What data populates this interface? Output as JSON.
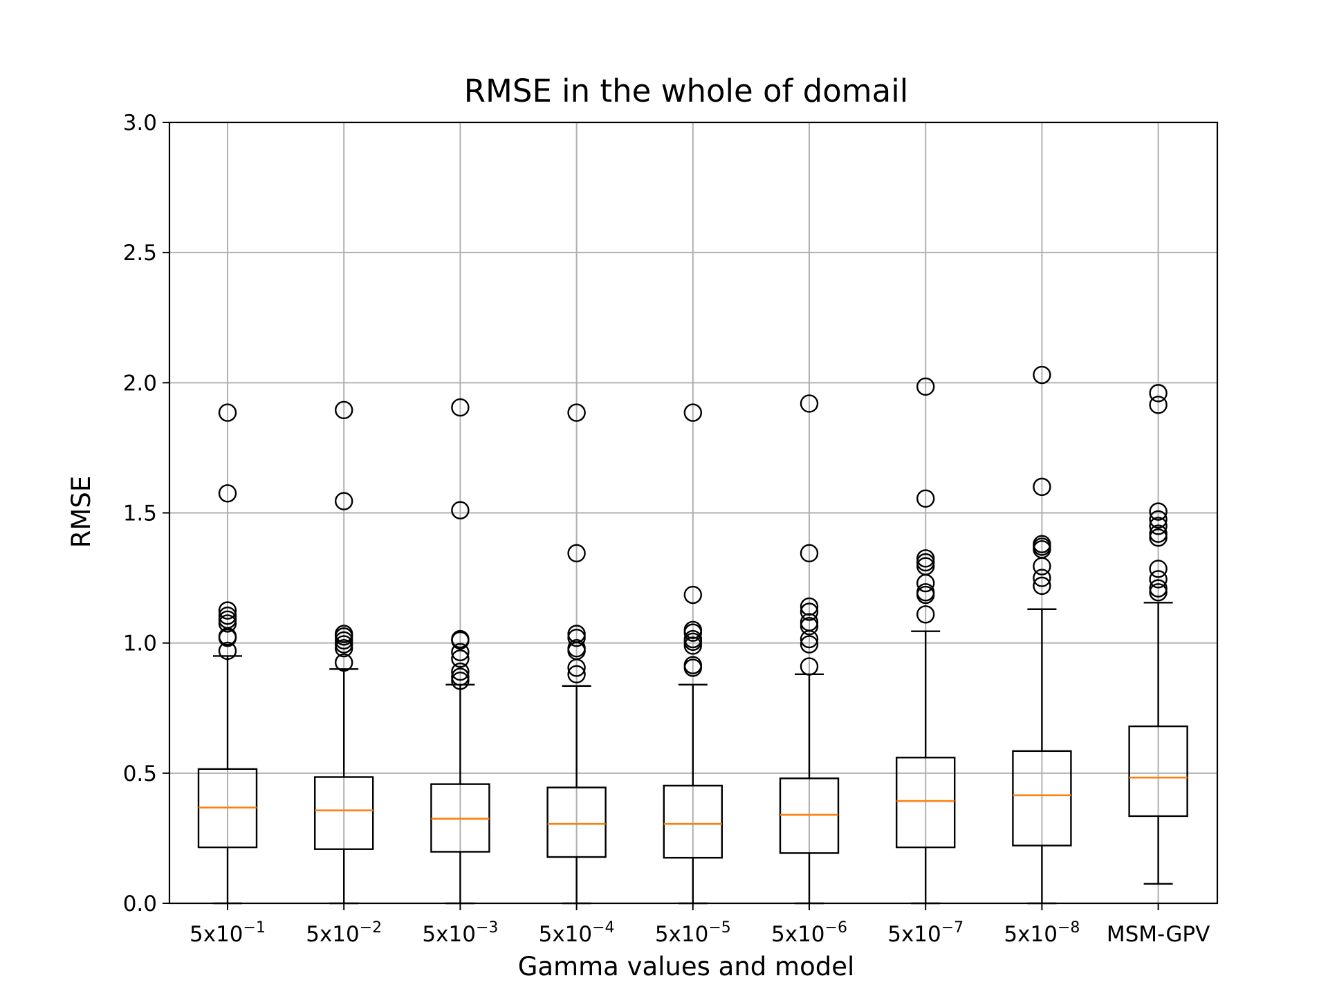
{
  "chart_data": {
    "type": "box",
    "title": "RMSE in the whole of domail",
    "xlabel": "Gamma values and model",
    "ylabel": "RMSE",
    "ylim": [
      0,
      3.0
    ],
    "yticks": [
      "0.0",
      "0.5",
      "1.0",
      "1.5",
      "2.0",
      "2.5",
      "3.0"
    ],
    "grid": true,
    "categories": [
      {
        "base": "5x10",
        "exp": "−1"
      },
      {
        "base": "5x10",
        "exp": "−2"
      },
      {
        "base": "5x10",
        "exp": "−3"
      },
      {
        "base": "5x10",
        "exp": "−4"
      },
      {
        "base": "5x10",
        "exp": "−5"
      },
      {
        "base": "5x10",
        "exp": "−6"
      },
      {
        "base": "5x10",
        "exp": "−7"
      },
      {
        "base": "5x10",
        "exp": "−8"
      },
      {
        "base": "MSM-GPV",
        "exp": ""
      }
    ],
    "boxes": [
      {
        "whisker_low": 0.0,
        "q1": 0.215,
        "median": 0.368,
        "q3": 0.516,
        "whisker_high": 0.95,
        "fliers": [
          0.97,
          1.02,
          1.025,
          1.075,
          1.09,
          1.105,
          1.125,
          1.575,
          1.885
        ]
      },
      {
        "whisker_low": 0.0,
        "q1": 0.208,
        "median": 0.357,
        "q3": 0.485,
        "whisker_high": 0.9,
        "fliers": [
          0.925,
          0.98,
          0.995,
          1.01,
          1.025,
          1.035,
          1.545,
          1.895
        ]
      },
      {
        "whisker_low": 0.0,
        "q1": 0.198,
        "median": 0.325,
        "q3": 0.458,
        "whisker_high": 0.84,
        "fliers": [
          0.855,
          0.87,
          0.89,
          0.94,
          0.965,
          1.01,
          1.015,
          1.51,
          1.905
        ]
      },
      {
        "whisker_low": 0.0,
        "q1": 0.178,
        "median": 0.305,
        "q3": 0.445,
        "whisker_high": 0.835,
        "fliers": [
          0.88,
          0.905,
          0.97,
          0.98,
          1.02,
          1.035,
          1.345,
          1.885
        ]
      },
      {
        "whisker_low": 0.0,
        "q1": 0.175,
        "median": 0.305,
        "q3": 0.452,
        "whisker_high": 0.84,
        "fliers": [
          0.905,
          0.915,
          0.99,
          1.005,
          1.015,
          1.04,
          1.05,
          1.185,
          1.885
        ]
      },
      {
        "whisker_low": 0.0,
        "q1": 0.193,
        "median": 0.34,
        "q3": 0.48,
        "whisker_high": 0.88,
        "fliers": [
          0.91,
          0.995,
          1.015,
          1.065,
          1.08,
          1.12,
          1.14,
          1.345,
          1.92
        ]
      },
      {
        "whisker_low": 0.0,
        "q1": 0.215,
        "median": 0.393,
        "q3": 0.56,
        "whisker_high": 1.045,
        "fliers": [
          1.11,
          1.185,
          1.195,
          1.23,
          1.295,
          1.31,
          1.325,
          1.555,
          1.985
        ]
      },
      {
        "whisker_low": 0.0,
        "q1": 0.222,
        "median": 0.415,
        "q3": 0.585,
        "whisker_high": 1.13,
        "fliers": [
          1.22,
          1.25,
          1.295,
          1.36,
          1.37,
          1.38,
          1.6,
          2.03
        ]
      },
      {
        "whisker_low": 0.075,
        "q1": 0.335,
        "median": 0.483,
        "q3": 0.68,
        "whisker_high": 1.155,
        "fliers": [
          1.195,
          1.21,
          1.245,
          1.285,
          1.405,
          1.42,
          1.45,
          1.475,
          1.505,
          1.915,
          1.96
        ]
      }
    ],
    "colors": {
      "box": "#000000",
      "median": "#ff7f0e",
      "grid": "#b0b0b0"
    }
  }
}
